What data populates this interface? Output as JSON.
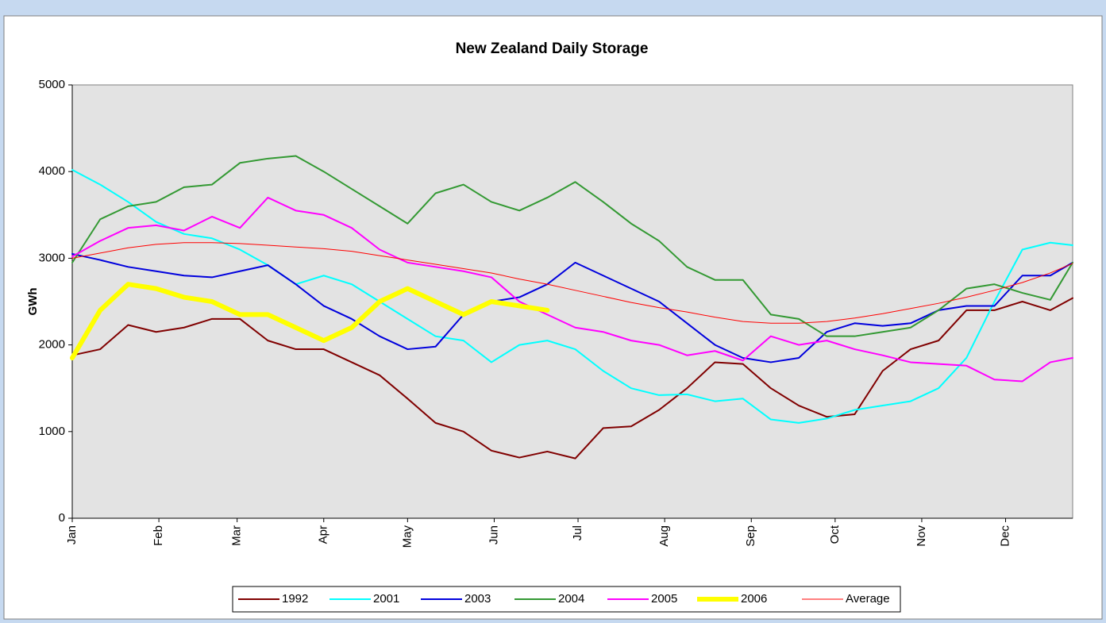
{
  "chart_data": {
    "type": "line",
    "title": "New Zealand Daily Storage",
    "y_label": "GWh",
    "x": [
      0,
      10,
      20,
      30,
      40,
      50,
      60,
      70,
      80,
      90,
      100,
      110,
      120,
      130,
      140,
      150,
      160,
      170,
      180,
      190,
      200,
      210,
      220,
      230,
      240,
      250,
      260,
      270,
      280,
      290,
      300,
      310,
      320,
      330,
      340,
      350,
      358
    ],
    "xlim": [
      0,
      358
    ],
    "xticks": [
      {
        "value": 0,
        "label": "Jan"
      },
      {
        "value": 31,
        "label": "Feb"
      },
      {
        "value": 59,
        "label": "Mar"
      },
      {
        "value": 90,
        "label": "Apr"
      },
      {
        "value": 120,
        "label": "May"
      },
      {
        "value": 151,
        "label": "Jun"
      },
      {
        "value": 181,
        "label": "Jul"
      },
      {
        "value": 212,
        "label": "Aug"
      },
      {
        "value": 243,
        "label": "Sep"
      },
      {
        "value": 273,
        "label": "Oct"
      },
      {
        "value": 304,
        "label": "Nov"
      },
      {
        "value": 334,
        "label": "Dec"
      }
    ],
    "ylim": [
      0,
      5000
    ],
    "yticks": [
      0,
      1000,
      2000,
      3000,
      4000,
      5000
    ],
    "grid": false,
    "legend": "bottom",
    "series": [
      {
        "name": "1992",
        "color": "#800000",
        "width": 2,
        "values": [
          1880,
          1950,
          2230,
          2150,
          2200,
          2300,
          2300,
          2050,
          1950,
          1950,
          1800,
          1650,
          1380,
          1100,
          1000,
          780,
          700,
          770,
          690,
          1040,
          1060,
          1250,
          1500,
          1800,
          1780,
          1500,
          1300,
          1170,
          1200,
          1700,
          1950,
          2050,
          2400,
          2400,
          2500,
          2400,
          2540
        ]
      },
      {
        "name": "2001",
        "color": "#00ffff",
        "width": 2,
        "values": [
          4020,
          3850,
          3650,
          3420,
          3280,
          3230,
          3100,
          2920,
          2700,
          2800,
          2700,
          2500,
          2300,
          2100,
          2050,
          1800,
          2000,
          2050,
          1950,
          1700,
          1500,
          1420,
          1430,
          1350,
          1380,
          1140,
          1100,
          1150,
          1250,
          1300,
          1350,
          1500,
          1850,
          2500,
          3100,
          3180,
          3150
        ]
      },
      {
        "name": "2003",
        "color": "#0000dd",
        "width": 2,
        "values": [
          3050,
          2980,
          2900,
          2850,
          2800,
          2780,
          2850,
          2920,
          2700,
          2450,
          2300,
          2100,
          1950,
          1980,
          2350,
          2500,
          2550,
          2700,
          2950,
          2800,
          2650,
          2500,
          2250,
          2000,
          1850,
          1800,
          1850,
          2150,
          2250,
          2220,
          2250,
          2400,
          2450,
          2450,
          2800,
          2800,
          2950
        ]
      },
      {
        "name": "2004",
        "color": "#339933",
        "width": 2,
        "values": [
          2950,
          3450,
          3600,
          3650,
          3820,
          3850,
          4100,
          4150,
          4180,
          4000,
          3800,
          3600,
          3400,
          3750,
          3850,
          3650,
          3550,
          3700,
          3880,
          3650,
          3400,
          3200,
          2900,
          2750,
          2750,
          2350,
          2300,
          2100,
          2100,
          2150,
          2200,
          2400,
          2650,
          2700,
          2600,
          2520,
          2950
        ]
      },
      {
        "name": "2005",
        "color": "#ff00ff",
        "width": 2,
        "values": [
          3020,
          3200,
          3350,
          3380,
          3320,
          3480,
          3350,
          3700,
          3550,
          3500,
          3350,
          3100,
          2950,
          2900,
          2850,
          2780,
          2500,
          2350,
          2200,
          2150,
          2050,
          2000,
          1880,
          1930,
          1820,
          2100,
          2000,
          2050,
          1950,
          1880,
          1800,
          1780,
          1760,
          1600,
          1580,
          1800,
          1850
        ]
      },
      {
        "name": "2006",
        "color": "#ffff00",
        "width": 6,
        "values": [
          1850,
          2400,
          2700,
          2650,
          2550,
          2500,
          2350,
          2350,
          2200,
          2050,
          2200,
          2500,
          2650,
          2500,
          2350,
          2500,
          2450,
          2400,
          null,
          null,
          null,
          null,
          null,
          null,
          null,
          null,
          null,
          null,
          null,
          null,
          null,
          null,
          null,
          null,
          null,
          null,
          null
        ]
      },
      {
        "name": "Average",
        "color": "#ff0000",
        "width": 1,
        "values": [
          3000,
          3060,
          3120,
          3160,
          3180,
          3180,
          3170,
          3150,
          3130,
          3110,
          3080,
          3030,
          2980,
          2930,
          2880,
          2830,
          2760,
          2700,
          2630,
          2560,
          2490,
          2430,
          2380,
          2320,
          2270,
          2250,
          2250,
          2270,
          2310,
          2360,
          2420,
          2480,
          2550,
          2630,
          2720,
          2830,
          2940
        ]
      }
    ]
  }
}
